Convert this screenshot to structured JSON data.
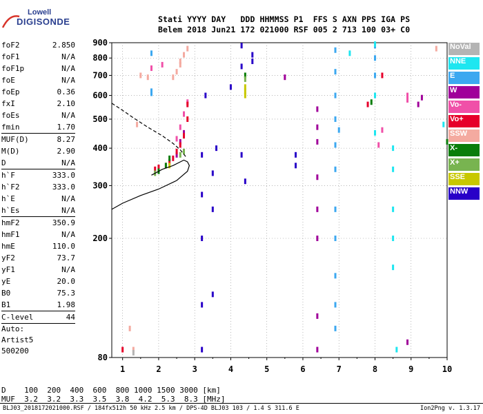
{
  "logo": {
    "line1": "Lowell",
    "line2": "DIGISONDE"
  },
  "header": {
    "line1": "Stati YYYY DAY   DDD HHMMSS P1  FFS S AXN PPS IGA PS",
    "line2": "Belem 2018 Jun21 172 021000 RSF 005 2 713 100 03+ C0"
  },
  "params": {
    "group1": [
      {
        "label": "foF2",
        "value": "2.850"
      },
      {
        "label": "foF1",
        "value": "N/A"
      },
      {
        "label": "foF1p",
        "value": "N/A"
      },
      {
        "label": "foE",
        "value": "N/A"
      },
      {
        "label": "foEp",
        "value": "0.36"
      },
      {
        "label": "fxI",
        "value": "2.10"
      },
      {
        "label": "foEs",
        "value": "N/A"
      },
      {
        "label": "fmin",
        "value": "1.70"
      }
    ],
    "group2": [
      {
        "label": "MUF(D)",
        "value": "8.27"
      },
      {
        "label": "M(D)",
        "value": "2.90"
      },
      {
        "label": "D",
        "value": "N/A"
      }
    ],
    "group3": [
      {
        "label": "h`F",
        "value": "333.0"
      },
      {
        "label": "h`F2",
        "value": "333.0"
      },
      {
        "label": "h`E",
        "value": "N/A"
      },
      {
        "label": "h`Es",
        "value": "N/A"
      }
    ],
    "group4": [
      {
        "label": "hmF2",
        "value": "350.9"
      },
      {
        "label": "hmF1",
        "value": "N/A"
      },
      {
        "label": "hmE",
        "value": "110.0"
      },
      {
        "label": "yF2",
        "value": "73.7"
      },
      {
        "label": "yF1",
        "value": "N/A"
      },
      {
        "label": "yE",
        "value": "20.0"
      },
      {
        "label": "B0",
        "value": "75.3"
      },
      {
        "label": "B1",
        "value": "1.98"
      }
    ],
    "clevel": {
      "label": "C-level",
      "value": "44"
    },
    "auto": [
      "Auto:",
      "Artist5",
      "500200"
    ]
  },
  "legend": [
    {
      "label": "NoVal",
      "color": "#b4b4b4"
    },
    {
      "label": "NNE",
      "color": "#1ee6f0"
    },
    {
      "label": "E",
      "color": "#3ca8f0"
    },
    {
      "label": "W",
      "color": "#a0009a"
    },
    {
      "label": "Vo-",
      "color": "#f050a8"
    },
    {
      "label": "Vo+",
      "color": "#e6002a"
    },
    {
      "label": "SSW",
      "color": "#f4aaa0"
    },
    {
      "label": "X-",
      "color": "#0a7d0a"
    },
    {
      "label": "X+",
      "color": "#78b450"
    },
    {
      "label": "SSE",
      "color": "#c8c800"
    },
    {
      "label": "NNW",
      "color": "#2800c8"
    }
  ],
  "dtable": {
    "row1": "D    100  200  400  600  800 1000 1500 3000 [km]",
    "row2": "MUF  3.2  3.2  3.3  3.5  3.8  4.2  5.3  8.3 [MHz]"
  },
  "footer": {
    "left": "BLJ03_2018172021000.RSF / 184fx512h 50 kHz 2.5 km / DPS-4D BLJ03 103 / 1.4 S 311.6 E",
    "right": "Ion2Png v. 1.3.17"
  },
  "chart_data": {
    "type": "scatter",
    "xlim": [
      0.7,
      10
    ],
    "ylim": [
      80,
      900
    ],
    "xticks": [
      "1",
      "2",
      "3",
      "4",
      "5",
      "6",
      "7",
      "8",
      "9",
      "10"
    ],
    "yticks": [
      "80",
      "200",
      "300",
      "400",
      "500",
      "600",
      "700",
      "800",
      "900"
    ],
    "yscale": "log",
    "grid": true,
    "series": [
      {
        "color": "#2800c8",
        "points": [
          [
            3.2,
            85
          ],
          [
            3.2,
            120
          ],
          [
            3.2,
            200
          ],
          [
            3.2,
            280
          ],
          [
            3.2,
            380
          ],
          [
            3.3,
            600
          ],
          [
            3.5,
            130
          ],
          [
            3.5,
            250
          ],
          [
            3.5,
            330
          ],
          [
            3.6,
            400
          ],
          [
            4.3,
            750
          ],
          [
            4.3,
            880
          ],
          [
            4.3,
            380
          ],
          [
            4.4,
            310
          ],
          [
            4.6,
            780
          ],
          [
            4.6,
            820
          ],
          [
            5.8,
            380
          ],
          [
            5.8,
            350
          ],
          [
            4.0,
            640
          ]
        ]
      },
      {
        "color": "#3ca8f0",
        "points": [
          [
            6.9,
            850
          ],
          [
            6.9,
            720
          ],
          [
            6.9,
            600
          ],
          [
            6.9,
            500
          ],
          [
            6.9,
            410
          ],
          [
            6.9,
            340
          ],
          [
            6.9,
            250
          ],
          [
            6.9,
            200
          ],
          [
            6.9,
            150
          ],
          [
            6.9,
            120
          ],
          [
            6.9,
            100
          ],
          [
            8.0,
            880
          ],
          [
            8.0,
            800
          ],
          [
            8.0,
            700
          ],
          [
            1.8,
            830
          ],
          [
            1.8,
            610
          ],
          [
            1.8,
            620
          ],
          [
            7.0,
            460
          ]
        ]
      },
      {
        "color": "#1ee6f0",
        "points": [
          [
            8.0,
            890
          ],
          [
            8.0,
            600
          ],
          [
            8.0,
            450
          ],
          [
            8.5,
            400
          ],
          [
            8.5,
            340
          ],
          [
            8.5,
            250
          ],
          [
            8.5,
            200
          ],
          [
            8.5,
            160
          ],
          [
            8.6,
            85
          ],
          [
            9.9,
            480
          ],
          [
            7.3,
            830
          ]
        ]
      },
      {
        "color": "#a0009a",
        "points": [
          [
            6.4,
            540
          ],
          [
            6.4,
            470
          ],
          [
            6.4,
            420
          ],
          [
            6.4,
            320
          ],
          [
            6.4,
            250
          ],
          [
            6.4,
            200
          ],
          [
            6.4,
            110
          ],
          [
            6.4,
            85
          ],
          [
            8.9,
            90
          ],
          [
            9.2,
            560
          ],
          [
            9.3,
            590
          ],
          [
            5.5,
            690
          ],
          [
            2.5,
            380
          ],
          [
            2.6,
            420
          ],
          [
            2.7,
            450
          ]
        ]
      },
      {
        "color": "#f050a8",
        "points": [
          [
            2.5,
            430
          ],
          [
            2.6,
            470
          ],
          [
            2.7,
            520
          ],
          [
            2.8,
            570
          ],
          [
            2.3,
            360
          ],
          [
            2.2,
            350
          ],
          [
            8.9,
            600
          ],
          [
            8.9,
            580
          ],
          [
            8.2,
            460
          ],
          [
            8.1,
            410
          ],
          [
            1.8,
            740
          ],
          [
            2.1,
            760
          ]
        ]
      },
      {
        "color": "#e6002a",
        "points": [
          [
            2.4,
            370
          ],
          [
            2.5,
            390
          ],
          [
            2.6,
            410
          ],
          [
            2.7,
            440
          ],
          [
            2.8,
            500
          ],
          [
            2.8,
            560
          ],
          [
            1.9,
            340
          ],
          [
            2.0,
            345
          ],
          [
            2.3,
            360
          ],
          [
            7.8,
            560
          ],
          [
            8.2,
            700
          ],
          [
            1.0,
            85
          ]
        ]
      },
      {
        "color": "#f4aaa0",
        "points": [
          [
            2.4,
            690
          ],
          [
            2.5,
            720
          ],
          [
            2.6,
            760
          ],
          [
            2.7,
            820
          ],
          [
            2.8,
            860
          ],
          [
            2.6,
            780
          ],
          [
            1.5,
            700
          ],
          [
            1.4,
            480
          ],
          [
            1.7,
            690
          ],
          [
            1.3,
            85
          ],
          [
            1.2,
            100
          ],
          [
            9.7,
            860
          ]
        ]
      },
      {
        "color": "#0a7d0a",
        "points": [
          [
            4.4,
            700
          ],
          [
            2.3,
            370
          ],
          [
            2.2,
            350
          ],
          [
            2.0,
            335
          ],
          [
            7.9,
            570
          ],
          [
            10.0,
            420
          ]
        ]
      },
      {
        "color": "#78b450",
        "points": [
          [
            4.4,
            680
          ],
          [
            2.6,
            380
          ],
          [
            2.7,
            390
          ],
          [
            1.9,
            330
          ]
        ]
      },
      {
        "color": "#c8c800",
        "points": [
          [
            4.4,
            640
          ],
          [
            4.4,
            620
          ],
          [
            4.4,
            600
          ],
          [
            2.3,
            350
          ]
        ]
      },
      {
        "color": "#b4b4b4",
        "points": [
          [
            1.3,
            83
          ]
        ]
      }
    ],
    "curves": [
      {
        "name": "profile",
        "style": "solid",
        "points": [
          [
            0.7,
            250
          ],
          [
            1.0,
            262
          ],
          [
            1.5,
            278
          ],
          [
            2.0,
            292
          ],
          [
            2.5,
            312
          ],
          [
            2.8,
            335
          ],
          [
            2.85,
            350
          ],
          [
            2.8,
            360
          ],
          [
            2.7,
            365
          ],
          [
            2.4,
            350
          ],
          [
            2.1,
            340
          ],
          [
            1.8,
            325
          ]
        ]
      },
      {
        "name": "trace",
        "style": "dashed",
        "points": [
          [
            0.7,
            565
          ],
          [
            1.0,
            535
          ],
          [
            1.3,
            505
          ],
          [
            1.7,
            470
          ],
          [
            2.1,
            440
          ],
          [
            2.4,
            415
          ],
          [
            2.6,
            395
          ],
          [
            2.75,
            375
          ]
        ]
      }
    ]
  }
}
